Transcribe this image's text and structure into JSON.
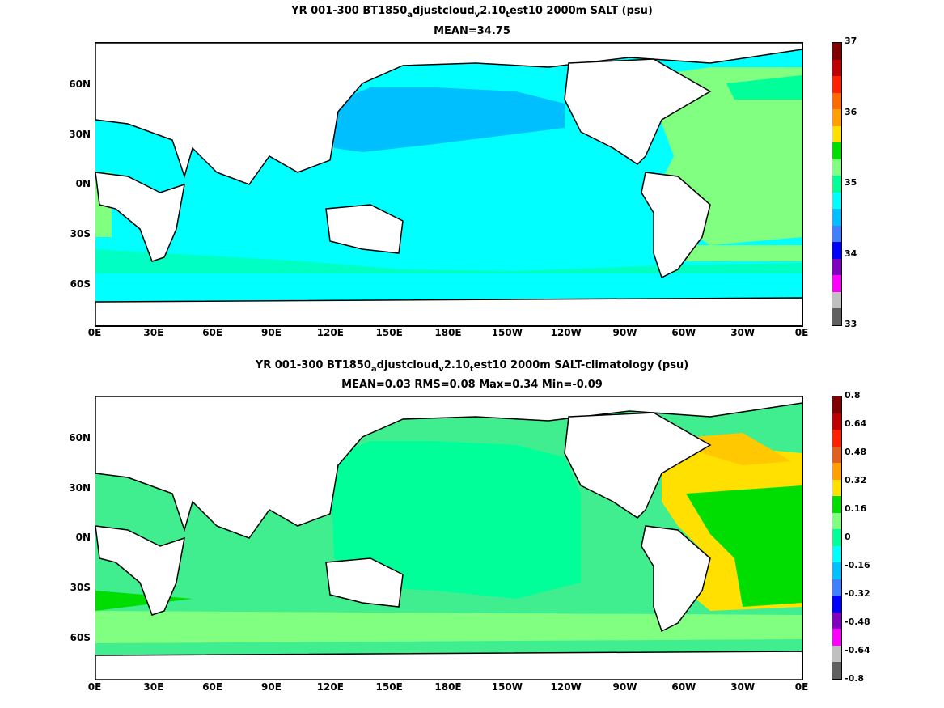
{
  "panels": [
    {
      "title_parts": [
        "YR 001-300 BT1850",
        "a",
        "djustcloud",
        "v",
        "2.10",
        "t",
        "est10 2000m SALT (psu)"
      ],
      "subtitle": "MEAN=34.75",
      "colorbar_labels": [
        "37",
        "36",
        "35",
        "34",
        "33"
      ],
      "colorbar_colors": [
        "#800000",
        "#c00000",
        "#ff2000",
        "#ff6a00",
        "#ffa000",
        "#ffe000",
        "#00dd00",
        "#80ff80",
        "#00ff99",
        "#00ffff",
        "#00c0ff",
        "#4080ff",
        "#0000ff",
        "#8000c0",
        "#ff00ff",
        "#c0c0c0",
        "#606060"
      ],
      "colors": {
        "land": "#ffffff",
        "pacific": "#00bfff",
        "ocean": "#00ffff",
        "atlantic": "#80ff80",
        "coast": "#00ff99"
      }
    },
    {
      "title_parts": [
        "YR 001-300 BT1850",
        "a",
        "djustcloud",
        "v",
        "2.10",
        "t",
        "est10 2000m SALT-climatology (psu)"
      ],
      "subtitle": "MEAN=0.03   RMS=0.08   Max=0.34   Min=-0.09",
      "colorbar_labels": [
        "0.8",
        "0.64",
        "0.48",
        "0.32",
        "0.16",
        "0",
        "-0.16",
        "-0.32",
        "-0.48",
        "-0.64",
        "-0.8"
      ],
      "colorbar_colors": [
        "#800000",
        "#c00000",
        "#ff2000",
        "#e06020",
        "#ffa000",
        "#ffe000",
        "#00dd00",
        "#80ff80",
        "#00ff99",
        "#00ffff",
        "#00c0ff",
        "#4080ff",
        "#0000ff",
        "#8000c0",
        "#ff00ff",
        "#c0c0c0",
        "#606060"
      ],
      "colors": {
        "land": "#ffffff",
        "pacific": "#00ff99",
        "ocean": "#40ee90",
        "atlantic": "#80ff80",
        "anomaly_hi": "#ffe000",
        "anomaly_mid": "#00dd00"
      }
    }
  ],
  "axes": {
    "lat_labels": [
      "60N",
      "30N",
      "0N",
      "30S",
      "60S"
    ],
    "lon_labels": [
      "0E",
      "30E",
      "60E",
      "90E",
      "120E",
      "150E",
      "180E",
      "150W",
      "120W",
      "90W",
      "60W",
      "30W",
      "0E"
    ]
  }
}
